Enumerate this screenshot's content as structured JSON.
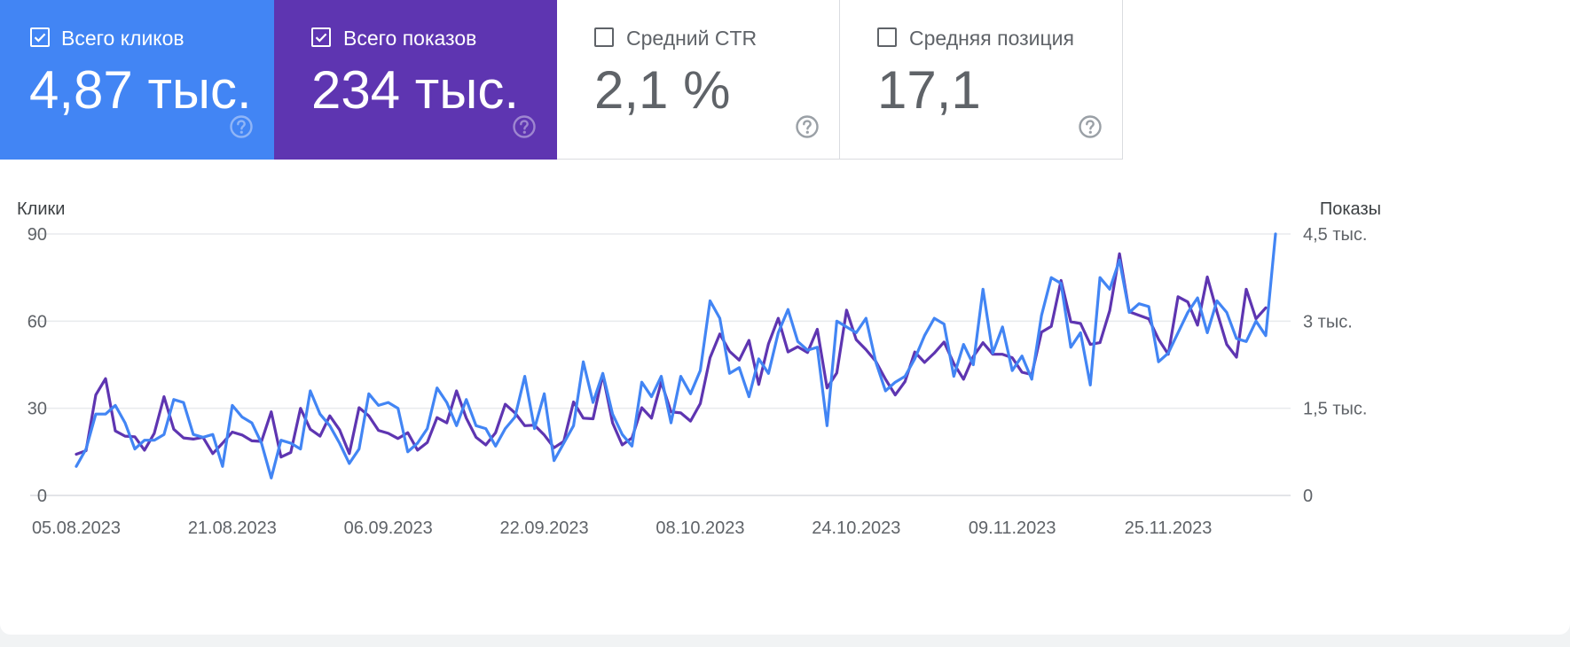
{
  "metrics": [
    {
      "label": "Всего кликов",
      "value": "4,87 тыс.",
      "checked": true,
      "bg": "#4285f4",
      "fg": "#ffffff",
      "help_color": "#8fb5f7"
    },
    {
      "label": "Всего показов",
      "value": "234 тыс.",
      "checked": true,
      "bg": "#5e35b1",
      "fg": "#ffffff",
      "help_color": "#9e86d0"
    },
    {
      "label": "Средний CTR",
      "value": "2,1 %",
      "checked": false,
      "bg": "#ffffff",
      "fg": "#5f6368",
      "help_color": "#9aa0a6"
    },
    {
      "label": "Средняя позиция",
      "value": "17,1",
      "checked": false,
      "bg": "#ffffff",
      "fg": "#5f6368",
      "help_color": "#9aa0a6"
    }
  ],
  "chart_data": {
    "type": "line",
    "ylabel_left": "Клики",
    "ylabel_right": "Показы",
    "ylim_left": [
      0,
      90
    ],
    "ylim_right": [
      0,
      4500
    ],
    "yticks_left": [
      "0",
      "30",
      "60",
      "90"
    ],
    "yticks_right": [
      "0",
      "1,5 тыс.",
      "3 тыс.",
      "4,5 тыс."
    ],
    "xlim": [
      "2023-08-05",
      "2023-12-06"
    ],
    "x_ticks": [
      "05.08.2023",
      "21.08.2023",
      "06.09.2023",
      "22.09.2023",
      "08.10.2023",
      "24.10.2023",
      "09.11.2023",
      "25.11.2023"
    ],
    "grid": true,
    "start_date": "2023-08-05",
    "series": [
      {
        "axis": "right",
        "color": "#5e35b1",
        "values": [
          710,
          770,
          1730,
          2010,
          1110,
          1020,
          1010,
          780,
          1070,
          1700,
          1140,
          990,
          970,
          1000,
          720,
          900,
          1090,
          1040,
          940,
          930,
          1440,
          660,
          740,
          1500,
          1140,
          1020,
          1370,
          1130,
          720,
          1510,
          1370,
          1120,
          1070,
          980,
          1080,
          780,
          910,
          1340,
          1250,
          1800,
          1330,
          1000,
          870,
          1080,
          1570,
          1420,
          1200,
          1210,
          1040,
          820,
          930,
          1610,
          1330,
          1320,
          2080,
          1250,
          870,
          990,
          1510,
          1330,
          1950,
          1440,
          1420,
          1280,
          1580,
          2370,
          2780,
          2480,
          2330,
          2670,
          1910,
          2610,
          3050,
          2470,
          2560,
          2460,
          2860,
          1850,
          2110,
          3190,
          2680,
          2510,
          2310,
          2000,
          1730,
          1960,
          2470,
          2290,
          2450,
          2640,
          2270,
          2000,
          2390,
          2630,
          2430,
          2430,
          2370,
          2120,
          2080,
          2810,
          2910,
          3700,
          2990,
          2960,
          2600,
          2630,
          3180,
          4160,
          3160,
          3100,
          3040,
          2690,
          2430,
          3420,
          3330,
          2930,
          3760,
          3160,
          2600,
          2380,
          3550,
          3040,
          3230
        ]
      },
      {
        "axis": "left",
        "color": "#4285f4",
        "values": [
          10,
          16,
          28,
          28,
          31,
          25,
          16,
          19,
          19,
          21,
          33,
          32,
          21,
          20,
          21,
          10,
          31,
          27,
          25,
          18,
          6,
          19,
          18,
          16,
          36,
          28,
          24,
          18,
          11,
          16,
          35,
          31,
          32,
          30,
          15,
          18,
          23,
          37,
          32,
          24,
          33,
          24,
          23,
          17,
          23,
          27,
          41,
          23,
          35,
          12,
          18,
          24,
          46,
          32,
          42,
          28,
          21,
          17,
          39,
          34,
          41,
          25,
          41,
          35,
          43,
          67,
          61,
          42,
          44,
          34,
          47,
          42,
          56,
          64,
          53,
          50,
          51,
          24,
          60,
          58,
          56,
          61,
          46,
          36,
          39,
          41,
          47,
          55,
          61,
          59,
          41,
          52,
          45,
          71,
          49,
          58,
          43,
          48,
          40,
          62,
          75,
          73,
          51,
          56,
          38,
          75,
          71,
          81,
          63,
          66,
          65,
          46,
          49,
          56,
          63,
          68,
          56,
          67,
          63,
          54,
          53,
          60,
          55,
          90
        ]
      }
    ]
  }
}
